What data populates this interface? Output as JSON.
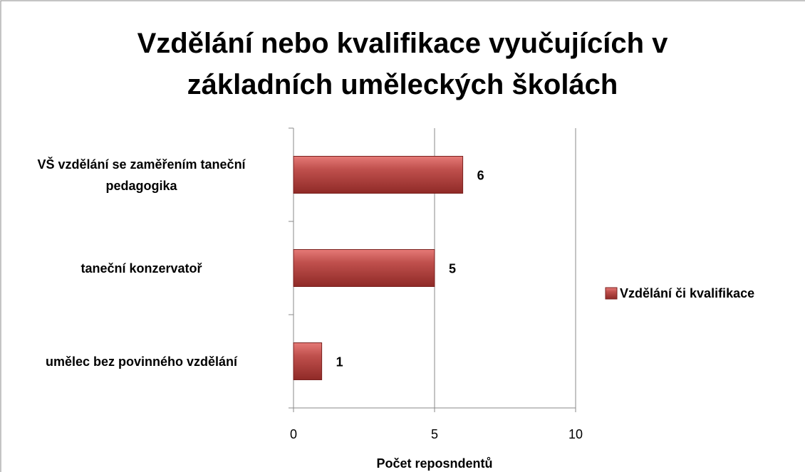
{
  "chart_data": {
    "type": "bar",
    "orientation": "horizontal",
    "title": "Vzdělání nebo kvalifikace vyučujících v základních uměleckých školách",
    "categories": [
      "VŠ vzdělání se zaměřením taneční pedagogika",
      "taneční konzervatoř",
      "umělec bez povinného vzdělání"
    ],
    "series": [
      {
        "name": "Vzdělání či kvalifikace",
        "color": "#c0504d",
        "values": [
          6,
          5,
          1
        ]
      }
    ],
    "xlim": [
      0,
      10
    ],
    "xticks": [
      0,
      5,
      10
    ],
    "grid": true,
    "legend": "right",
    "xlabel": "Počet reposndentů"
  }
}
